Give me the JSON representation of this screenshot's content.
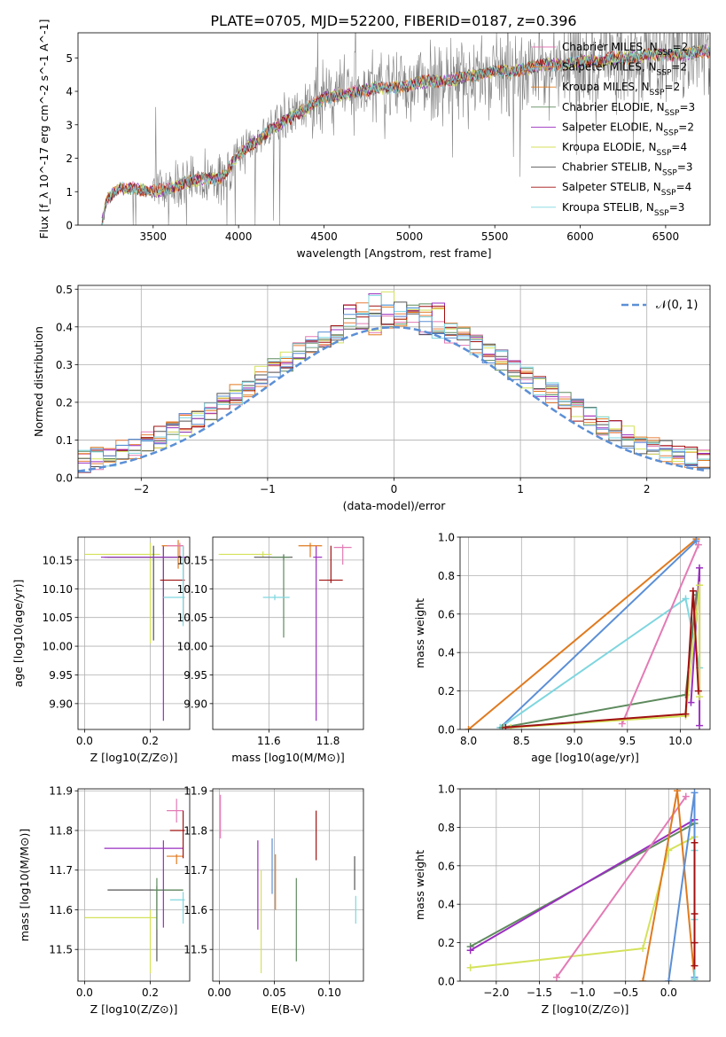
{
  "figure_title": "PLATE=0705, MJD=52200, FIBERID=0187, z=0.396",
  "colors": {
    "Chabrier MILES": "#5b8fd6",
    "Salpeter MILES": "#e67e3a",
    "Kroupa MILES": "#e07a1f",
    "Chabrier ELODIE": "#5e8a5e",
    "Salpeter ELODIE": "#9a2fbf",
    "Kroupa ELODIE": "#d4e25a",
    "Chabrier STELIB": "#555555",
    "Salpeter STELIB": "#a01010",
    "Kroupa STELIB": "#7fd6df",
    "pink": "#e37bb5"
  },
  "chart_data": [
    {
      "id": "spectrum",
      "type": "line",
      "xlabel": "wavelength [Angstrom, rest frame]",
      "ylabel": "Flux [f_λ 10^-17 erg cm^-2 s^-1 A^-1]",
      "xlim": [
        3060,
        6760
      ],
      "ylim": [
        0,
        5.75
      ],
      "xticks": [
        3500,
        4000,
        4500,
        5000,
        5500,
        6000,
        6500
      ],
      "yticks": [
        0,
        1,
        2,
        3,
        4,
        5
      ],
      "legend_position": "top-right",
      "legend": [
        "Chabrier MILES, N_SSP=2",
        "Salpeter MILES, N_SSP=2",
        "Kroupa MILES, N_SSP=2",
        "Chabrier ELODIE, N_SSP=3",
        "Salpeter ELODIE, N_SSP=2",
        "Kroupa ELODIE, N_SSP=4",
        "Chabrier STELIB, N_SSP=3",
        "Salpeter STELIB, N_SSP=4",
        "Kroupa STELIB, N_SSP=3"
      ],
      "legend_colors": [
        "#e37bb5",
        "#e67e3a",
        "#e07a1f",
        "#5e8a5e",
        "#9a2fbf",
        "#d4e25a",
        "#555555",
        "#a01010",
        "#7fd6df"
      ],
      "data_series": {
        "name": "data",
        "color": "#808080"
      },
      "model_continuum": {
        "x": [
          3200,
          3230,
          3300,
          3400,
          3500,
          3600,
          3700,
          3800,
          3900,
          4000,
          4100,
          4200,
          4300,
          4400,
          4500,
          4600,
          4700,
          4800,
          4900,
          5000,
          5100,
          5200,
          5300,
          5400,
          5500,
          5600,
          5700,
          5800,
          5900,
          6000,
          6100,
          6200,
          6300,
          6400,
          6500,
          6600,
          6700
        ],
        "y": [
          0,
          0.8,
          1.1,
          1.1,
          1.0,
          1.1,
          1.3,
          1.4,
          1.4,
          2.1,
          2.5,
          2.9,
          3.2,
          3.5,
          3.8,
          3.9,
          4.0,
          4.1,
          4.1,
          4.2,
          4.3,
          4.3,
          4.4,
          4.5,
          4.6,
          4.6,
          4.7,
          4.8,
          4.8,
          4.9,
          4.9,
          5.0,
          5.0,
          5.1,
          5.1,
          5.1,
          5.2
        ]
      }
    },
    {
      "id": "residuals",
      "type": "line",
      "xlabel": "(data-model)/error",
      "ylabel": "Normed distribution",
      "xlim": [
        -2.5,
        2.5
      ],
      "ylim": [
        0,
        0.51
      ],
      "xticks": [
        -2,
        -1,
        0,
        1,
        2
      ],
      "yticks": [
        0.0,
        0.1,
        0.2,
        0.3,
        0.4,
        0.5
      ],
      "grid": true,
      "legend": [
        "𝒩(0, 1)"
      ],
      "legend_position": "top-right",
      "normal_curve": {
        "mean": 0,
        "sigma": 1,
        "color": "#5b8fd6",
        "style": "dashed"
      },
      "bin_width": 0.1,
      "histogram_colors": [
        "#e37bb5",
        "#e67e3a",
        "#e07a1f",
        "#5e8a5e",
        "#9a2fbf",
        "#d4e25a",
        "#555555",
        "#a01010",
        "#7fd6df",
        "#5b8fd6"
      ]
    },
    {
      "id": "age_vs_Z",
      "type": "scatter",
      "xlabel": "Z [log10(Z/Z⊙)]",
      "ylabel": "age [log10(age/yr)]",
      "xlim": [
        -0.02,
        0.32
      ],
      "ylim": [
        9.855,
        10.19
      ],
      "xticks": [
        0.0,
        0.2
      ],
      "yticks": [
        9.9,
        9.95,
        10.0,
        10.05,
        10.1,
        10.15
      ],
      "grid": true,
      "errorbars": [
        {
          "color": "#d4e25a",
          "x": 0.2,
          "xerr": [
            0.2,
            0.03
          ],
          "y": 10.16,
          "yerr": [
            0.155,
            0.02
          ]
        },
        {
          "color": "#555555",
          "x": 0.21,
          "xerr": [
            0.14,
            0.1
          ],
          "y": 10.155,
          "yerr": [
            0.145,
            0.02
          ]
        },
        {
          "color": "#5e8a5e",
          "x": 0.24,
          "xerr": [
            0.18,
            0.08
          ],
          "y": 10.155,
          "yerr": [
            0.1,
            0.02
          ]
        },
        {
          "color": "#9a2fbf",
          "x": 0.24,
          "xerr": [
            0.19,
            0.07
          ],
          "y": 10.155,
          "yerr": [
            0.285,
            0.02
          ]
        },
        {
          "color": "#e07a1f",
          "x": 0.285,
          "xerr": [
            0.05,
            0.015
          ],
          "y": 10.175,
          "yerr": [
            0.04,
            0.01
          ]
        },
        {
          "color": "#e37bb5",
          "x": 0.29,
          "xerr": [
            0.04,
            0.01
          ],
          "y": 10.175,
          "yerr": [
            0.02,
            0.005
          ]
        },
        {
          "color": "#a01010",
          "x": 0.3,
          "xerr": [
            0.07,
            0.005
          ],
          "y": 10.115,
          "yerr": [
            0.06,
            0.06
          ]
        },
        {
          "color": "#7fd6df",
          "x": 0.3,
          "xerr": [
            0.06,
            0.005
          ],
          "y": 10.085,
          "yerr": [
            0.05,
            0.09
          ]
        }
      ]
    },
    {
      "id": "age_vs_mass",
      "type": "scatter",
      "xlabel": "mass [log10(M/M⊙)]",
      "ylim": [
        9.855,
        10.19
      ],
      "xlim": [
        11.41,
        11.92
      ],
      "xticks": [
        11.6,
        11.8
      ],
      "yticks": [
        9.9,
        9.95,
        10.0,
        10.05,
        10.1,
        10.15
      ],
      "grid": true,
      "errorbars": [
        {
          "color": "#d4e25a",
          "x": 11.58,
          "xerr": [
            0.15,
            0.03
          ],
          "y": 10.16,
          "yerr": [
            0.005,
            0.005
          ]
        },
        {
          "color": "#555555",
          "x": 11.65,
          "xerr": [
            0.1,
            0.03
          ],
          "y": 10.155,
          "yerr": [
            0.005,
            0.005
          ]
        },
        {
          "color": "#5e8a5e",
          "x": 11.65,
          "xerr": [
            0.04,
            0.02
          ],
          "y": 10.155,
          "yerr": [
            0.14,
            0.005
          ]
        },
        {
          "color": "#9a2fbf",
          "x": 11.76,
          "xerr": [
            0.01,
            0.02
          ],
          "y": 10.155,
          "yerr": [
            0.285,
            0.02
          ]
        },
        {
          "color": "#e07a1f",
          "x": 11.74,
          "xerr": [
            0.04,
            0.04
          ],
          "y": 10.175,
          "yerr": [
            0.02,
            0.005
          ]
        },
        {
          "color": "#e37bb5",
          "x": 11.85,
          "xerr": [
            0.03,
            0.03
          ],
          "y": 10.172,
          "yerr": [
            0.03,
            0.005
          ]
        },
        {
          "color": "#a01010",
          "x": 11.81,
          "xerr": [
            0.04,
            0.04
          ],
          "y": 10.115,
          "yerr": [
            0.005,
            0.06
          ]
        },
        {
          "color": "#7fd6df",
          "x": 11.62,
          "xerr": [
            0.04,
            0.05
          ],
          "y": 10.085,
          "yerr": [
            0.005,
            0.005
          ]
        }
      ]
    },
    {
      "id": "massweight_vs_age",
      "type": "line",
      "xlabel": "age [log10(age/yr)]",
      "ylabel": "mass weight",
      "xlim": [
        7.92,
        10.28
      ],
      "ylim": [
        0,
        1.0
      ],
      "xticks": [
        8.0,
        8.5,
        9.0,
        9.5,
        10.0
      ],
      "yticks": [
        0.0,
        0.2,
        0.4,
        0.6,
        0.8,
        1.0
      ],
      "grid": true,
      "series": [
        {
          "color": "#e07a1f",
          "x": [
            8.0,
            10.15
          ],
          "y": [
            0.0,
            0.99
          ]
        },
        {
          "color": "#5b8fd6",
          "x": [
            8.3,
            10.15
          ],
          "y": [
            0.01,
            0.98
          ]
        },
        {
          "color": "#7fd6df",
          "x": [
            8.3,
            10.05,
            10.18
          ],
          "y": [
            0.01,
            0.68,
            0.32
          ]
        },
        {
          "color": "#5e8a5e",
          "x": [
            8.32,
            10.05,
            10.15
          ],
          "y": [
            0.01,
            0.18,
            0.7
          ]
        },
        {
          "color": "#e37bb5",
          "x": [
            9.45,
            10.17
          ],
          "y": [
            0.03,
            0.96
          ]
        },
        {
          "color": "#9a2fbf",
          "x": [
            10.1,
            10.18,
            10.18
          ],
          "y": [
            0.14,
            0.84,
            0.02
          ]
        },
        {
          "color": "#d4e25a",
          "x": [
            8.4,
            10.05,
            10.18,
            10.18
          ],
          "y": [
            0.01,
            0.07,
            0.75,
            0.17
          ]
        },
        {
          "color": "#a01010",
          "x": [
            8.35,
            10.05,
            10.12,
            10.17
          ],
          "y": [
            0.01,
            0.08,
            0.72,
            0.2
          ]
        }
      ]
    },
    {
      "id": "mass_vs_Z",
      "type": "scatter",
      "xlabel": "Z [log10(Z/Z⊙)]",
      "ylabel": "mass [log10(M/M⊙)]",
      "xlim": [
        -0.02,
        0.32
      ],
      "ylim": [
        11.42,
        11.905
      ],
      "xticks": [
        0.0,
        0.2
      ],
      "yticks": [
        11.5,
        11.6,
        11.7,
        11.8,
        11.9
      ],
      "grid": true,
      "errorbars": [
        {
          "color": "#d4e25a",
          "x": 0.2,
          "xerr": [
            0.2,
            0.02
          ],
          "y": 11.58,
          "yerr": [
            0.14,
            0.02
          ]
        },
        {
          "color": "#555555",
          "x": 0.22,
          "xerr": [
            0.15,
            0.08
          ],
          "y": 11.65,
          "yerr": [
            0.18,
            0.01
          ]
        },
        {
          "color": "#5e8a5e",
          "x": 0.22,
          "xerr": [
            0.01,
            0.08
          ],
          "y": 11.65,
          "yerr": [
            0.1,
            0.03
          ]
        },
        {
          "color": "#9a2fbf",
          "x": 0.24,
          "xerr": [
            0.18,
            0.06
          ],
          "y": 11.755,
          "yerr": [
            0.2,
            0.02
          ]
        },
        {
          "color": "#e07a1f",
          "x": 0.28,
          "xerr": [
            0.03,
            0.02
          ],
          "y": 11.735,
          "yerr": [
            0.02,
            0.005
          ]
        },
        {
          "color": "#e37bb5",
          "x": 0.28,
          "xerr": [
            0.03,
            0.02
          ],
          "y": 11.85,
          "yerr": [
            0.03,
            0.03
          ]
        },
        {
          "color": "#a01010",
          "x": 0.3,
          "xerr": [
            0.04,
            0.005
          ],
          "y": 11.8,
          "yerr": [
            0.07,
            0.05
          ]
        },
        {
          "color": "#7fd6df",
          "x": 0.3,
          "xerr": [
            0.04,
            0.005
          ],
          "y": 11.625,
          "yerr": [
            0.06,
            0.02
          ]
        }
      ]
    },
    {
      "id": "mass_vs_EBV",
      "type": "scatter",
      "xlabel": "E(B-V)",
      "xlim": [
        -0.006,
        0.131
      ],
      "ylim": [
        11.42,
        11.905
      ],
      "xticks": [
        0.0,
        0.05,
        0.1
      ],
      "yticks": [
        11.5,
        11.6,
        11.7,
        11.8,
        11.9
      ],
      "grid": true,
      "errorbars": [
        {
          "color": "#e37bb5",
          "x": 0.001,
          "y": 11.84,
          "yerr": [
            0.06,
            0.05
          ]
        },
        {
          "color": "#9a2fbf",
          "x": 0.035,
          "y": 11.69,
          "yerr": [
            0.14,
            0.085
          ]
        },
        {
          "color": "#d4e25a",
          "x": 0.038,
          "y": 11.6,
          "yerr": [
            0.16,
            0.1
          ]
        },
        {
          "color": "#5b8fd6",
          "x": 0.048,
          "y": 11.71,
          "yerr": [
            0.07,
            0.07
          ]
        },
        {
          "color": "#e07a1f",
          "x": 0.051,
          "y": 11.67,
          "yerr": [
            0.07,
            0.07
          ]
        },
        {
          "color": "#5e8a5e",
          "x": 0.07,
          "y": 11.61,
          "yerr": [
            0.14,
            0.07
          ]
        },
        {
          "color": "#a01010",
          "x": 0.088,
          "y": 11.785,
          "yerr": [
            0.06,
            0.065
          ]
        },
        {
          "color": "#555555",
          "x": 0.123,
          "y": 11.69,
          "yerr": [
            0.04,
            0.045
          ]
        },
        {
          "color": "#7fd6df",
          "x": 0.124,
          "y": 11.6,
          "yerr": [
            0.035,
            0.035
          ]
        }
      ]
    },
    {
      "id": "massweight_vs_Z",
      "type": "line",
      "xlabel": "Z [log10(Z/Z⊙)]",
      "ylabel": "mass weight",
      "xlim": [
        -2.42,
        0.48
      ],
      "ylim": [
        0,
        1.0
      ],
      "xticks": [
        -2.0,
        -1.5,
        -1.0,
        -0.5,
        0.0
      ],
      "yticks": [
        0.0,
        0.2,
        0.4,
        0.6,
        0.8,
        1.0
      ],
      "grid": true,
      "series": [
        {
          "color": "#5e8a5e",
          "x": [
            -2.3,
            0.3
          ],
          "y": [
            0.18,
            0.82
          ]
        },
        {
          "color": "#9a2fbf",
          "x": [
            -2.3,
            0.3
          ],
          "y": [
            0.16,
            0.84
          ]
        },
        {
          "color": "#d4e25a",
          "x": [
            -2.3,
            -0.3,
            0.0,
            0.3
          ],
          "y": [
            0.07,
            0.17,
            0.68,
            0.75
          ]
        },
        {
          "color": "#e37bb5",
          "x": [
            -1.3,
            0.2
          ],
          "y": [
            0.02,
            0.96
          ]
        },
        {
          "color": "#e07a1f",
          "x": [
            -0.3,
            0.1,
            0.3
          ],
          "y": [
            0.0,
            0.99,
            0.01
          ]
        },
        {
          "color": "#5b8fd6",
          "x": [
            0.0,
            0.3,
            0.3
          ],
          "y": [
            0.0,
            0.98,
            0.02
          ]
        },
        {
          "color": "#7fd6df",
          "x": [
            0.3,
            0.3,
            0.3
          ],
          "y": [
            0.68,
            0.32,
            0.01
          ]
        },
        {
          "color": "#a01010",
          "x": [
            0.3,
            0.3,
            0.3,
            0.3
          ],
          "y": [
            0.72,
            0.35,
            0.08,
            0.2
          ]
        }
      ]
    }
  ]
}
